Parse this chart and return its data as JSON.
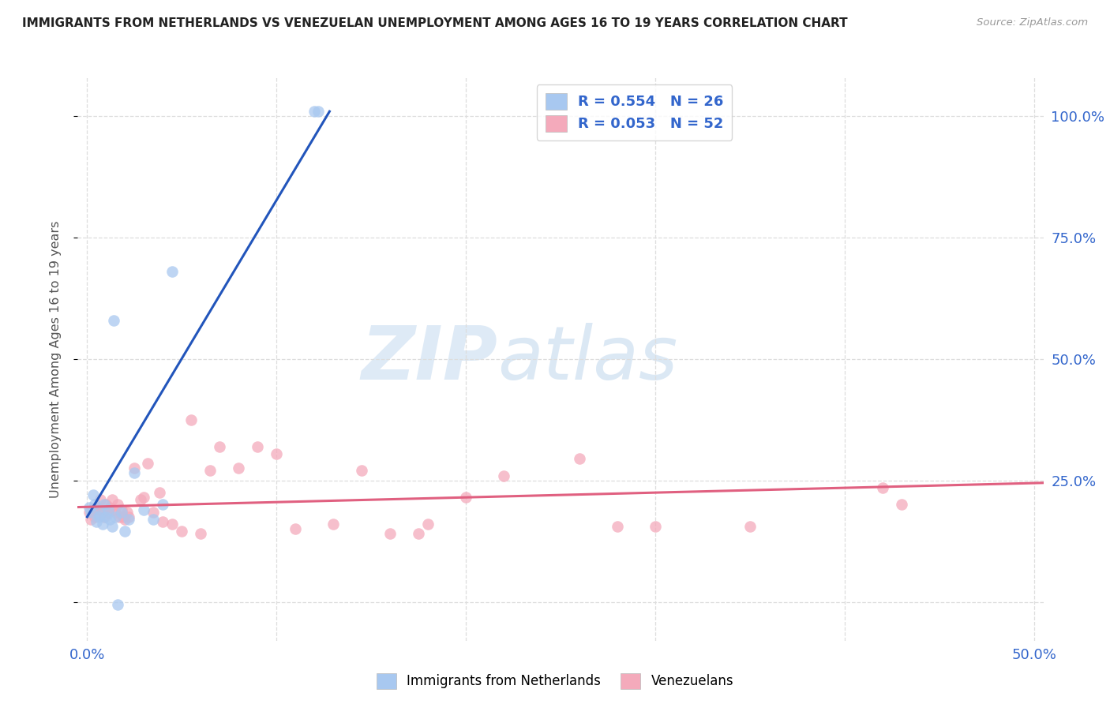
{
  "title": "IMMIGRANTS FROM NETHERLANDS VS VENEZUELAN UNEMPLOYMENT AMONG AGES 16 TO 19 YEARS CORRELATION CHART",
  "source": "Source: ZipAtlas.com",
  "ylabel": "Unemployment Among Ages 16 to 19 years",
  "xlim": [
    -0.005,
    0.505
  ],
  "ylim": [
    -0.08,
    1.08
  ],
  "legend_r1": "R = 0.554   N = 26",
  "legend_r2": "R = 0.053   N = 52",
  "blue_color": "#A8C8F0",
  "pink_color": "#F4AABB",
  "blue_line_color": "#2255BB",
  "pink_line_color": "#E06080",
  "watermark_zip": "ZIP",
  "watermark_atlas": "atlas",
  "blue_scatter_x": [
    0.001,
    0.002,
    0.003,
    0.004,
    0.005,
    0.006,
    0.007,
    0.008,
    0.009,
    0.01,
    0.011,
    0.012,
    0.013,
    0.015,
    0.016,
    0.018,
    0.02,
    0.022,
    0.025,
    0.03,
    0.035,
    0.04,
    0.045,
    0.12,
    0.122,
    0.014
  ],
  "blue_scatter_y": [
    0.195,
    0.185,
    0.22,
    0.2,
    0.165,
    0.175,
    0.18,
    0.16,
    0.2,
    0.175,
    0.19,
    0.17,
    0.155,
    0.175,
    -0.005,
    0.185,
    0.145,
    0.17,
    0.265,
    0.19,
    0.17,
    0.2,
    0.68,
    1.01,
    1.01,
    0.58
  ],
  "pink_scatter_x": [
    0.001,
    0.002,
    0.003,
    0.004,
    0.005,
    0.006,
    0.007,
    0.008,
    0.009,
    0.01,
    0.011,
    0.012,
    0.013,
    0.014,
    0.015,
    0.016,
    0.017,
    0.018,
    0.019,
    0.02,
    0.021,
    0.022,
    0.025,
    0.028,
    0.03,
    0.032,
    0.035,
    0.038,
    0.04,
    0.045,
    0.05,
    0.055,
    0.06,
    0.065,
    0.07,
    0.08,
    0.09,
    0.1,
    0.11,
    0.13,
    0.145,
    0.16,
    0.18,
    0.2,
    0.22,
    0.26,
    0.3,
    0.35,
    0.42,
    0.43,
    0.175,
    0.28
  ],
  "pink_scatter_y": [
    0.185,
    0.17,
    0.19,
    0.175,
    0.195,
    0.19,
    0.21,
    0.185,
    0.175,
    0.2,
    0.185,
    0.195,
    0.21,
    0.19,
    0.185,
    0.2,
    0.175,
    0.19,
    0.175,
    0.17,
    0.185,
    0.175,
    0.275,
    0.21,
    0.215,
    0.285,
    0.185,
    0.225,
    0.165,
    0.16,
    0.145,
    0.375,
    0.14,
    0.27,
    0.32,
    0.275,
    0.32,
    0.305,
    0.15,
    0.16,
    0.27,
    0.14,
    0.16,
    0.215,
    0.26,
    0.295,
    0.155,
    0.155,
    0.235,
    0.2,
    0.14,
    0.155
  ],
  "blue_trend_x": [
    0.0,
    0.128
  ],
  "blue_trend_y": [
    0.175,
    1.01
  ],
  "pink_trend_x": [
    -0.005,
    0.505
  ],
  "pink_trend_y": [
    0.195,
    0.245
  ],
  "gridline_color": "#DDDDDD",
  "yticks": [
    0.0,
    0.25,
    0.5,
    0.75,
    1.0
  ],
  "xticks": [
    0.0,
    0.1,
    0.2,
    0.3,
    0.4,
    0.5
  ]
}
